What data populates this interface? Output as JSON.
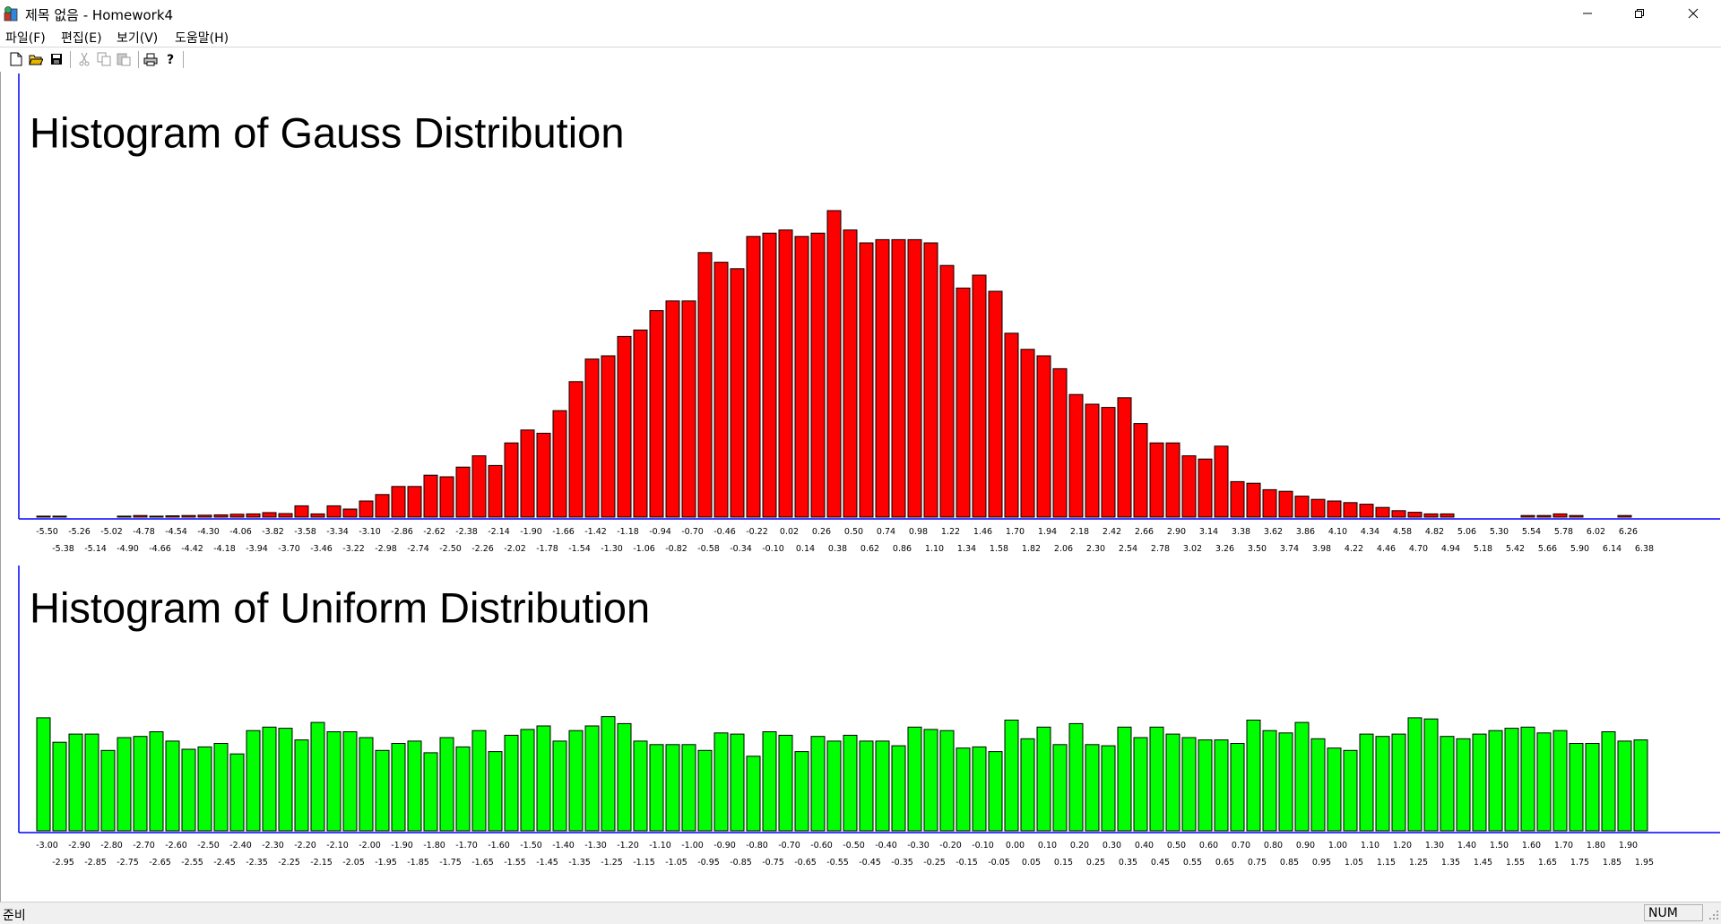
{
  "window": {
    "title": "제목 없음 - Homework4",
    "icons": {
      "app": "app-icon",
      "minimize": "minimize-icon",
      "restore": "restore-icon",
      "close": "close-icon"
    }
  },
  "menu": {
    "items": [
      "파일(F)",
      "편집(E)",
      "보기(V)",
      "도움말(H)"
    ]
  },
  "toolbar": {
    "buttons": [
      "new-file-icon",
      "open-folder-icon",
      "save-icon",
      "cut-icon",
      "copy-icon",
      "paste-icon",
      "print-icon",
      "help-icon"
    ]
  },
  "status": {
    "ready": "준비",
    "num": "NUM"
  },
  "colors": {
    "gauss_bar": "#ff0000",
    "uniform_bar": "#00ff00",
    "axis": "#0000ff"
  },
  "chart_data": [
    {
      "type": "bar",
      "title": "Histogram of Gauss Distribution",
      "bar_color": "#ff0000",
      "x": [
        -5.5,
        -5.38,
        -5.26,
        -5.14,
        -5.02,
        -4.9,
        -4.78,
        -4.66,
        -4.54,
        -4.42,
        -4.3,
        -4.18,
        -4.06,
        -3.94,
        -3.82,
        -3.7,
        -3.58,
        -3.46,
        -3.34,
        -3.22,
        -3.1,
        -2.98,
        -2.86,
        -2.74,
        -2.62,
        -2.5,
        -2.38,
        -2.26,
        -2.14,
        -2.02,
        -1.9,
        -1.78,
        -1.66,
        -1.54,
        -1.42,
        -1.3,
        -1.18,
        -1.06,
        -0.94,
        -0.82,
        -0.7,
        -0.58,
        -0.46,
        -0.34,
        -0.22,
        -0.1,
        0.02,
        0.14,
        0.26,
        0.38,
        0.5,
        0.62,
        0.74,
        0.86,
        0.98,
        1.1,
        1.22,
        1.34,
        1.46,
        1.58,
        1.7,
        1.82,
        1.94,
        2.06,
        2.18,
        2.3,
        2.42,
        2.54,
        2.66,
        2.78,
        2.9,
        3.02,
        3.14,
        3.26,
        3.38,
        3.5,
        3.62,
        3.74,
        3.86,
        3.98,
        4.1,
        4.22,
        4.34,
        4.46,
        4.58,
        4.7,
        4.82,
        4.94,
        5.06,
        5.18,
        5.3,
        5.42,
        5.54,
        5.66,
        5.78,
        5.9,
        6.02,
        6.14,
        6.26,
        6.38
      ],
      "tick_labels_row1": [
        "-5.50",
        "-5.26",
        "-5.02",
        "-4.78",
        "-4.54",
        "-4.30",
        "-4.06",
        "-3.82",
        "-3.58",
        "-3.34",
        "-3.10",
        "-2.86",
        "-2.62",
        "-2.38",
        "-2.14",
        "-1.90",
        "-1.66",
        "-1.42",
        "-1.18",
        "-0.94",
        "-0.70",
        "-0.46",
        "-0.22",
        "0.02",
        "0.26",
        "0.50",
        "0.74",
        "0.98",
        "1.22",
        "1.46",
        "1.70",
        "1.94",
        "2.18",
        "2.42",
        "2.66",
        "2.90",
        "3.14",
        "3.38",
        "3.62",
        "3.86",
        "4.10",
        "4.34",
        "4.58",
        "4.82",
        "5.06",
        "5.30",
        "5.54",
        "5.78",
        "6.02",
        "6.26"
      ],
      "tick_labels_row2": [
        "-5.38",
        "-5.14",
        "-4.90",
        "-4.66",
        "-4.42",
        "-4.18",
        "-3.94",
        "-3.70",
        "-3.46",
        "-3.22",
        "-2.98",
        "-2.74",
        "-2.50",
        "-2.26",
        "-2.02",
        "-1.78",
        "-1.54",
        "-1.30",
        "-1.06",
        "-0.82",
        "-0.58",
        "-0.34",
        "-0.10",
        "0.14",
        "0.38",
        "0.62",
        "0.86",
        "1.10",
        "1.34",
        "1.58",
        "1.82",
        "2.06",
        "2.30",
        "2.54",
        "2.78",
        "3.02",
        "3.26",
        "3.50",
        "3.74",
        "3.98",
        "4.22",
        "4.46",
        "4.70",
        "4.94",
        "5.18",
        "5.42",
        "5.66",
        "5.90",
        "6.14",
        "6.38"
      ],
      "values": [
        0.3,
        0.3,
        0,
        0,
        0,
        0.3,
        0.5,
        0.3,
        0.4,
        0.5,
        0.6,
        0.7,
        0.9,
        1.0,
        1.4,
        1.1,
        3.5,
        1.0,
        3.5,
        2.5,
        5,
        7,
        9.5,
        9.5,
        13,
        12.5,
        15.5,
        19,
        16,
        23,
        27,
        26,
        33,
        42,
        49,
        50,
        56,
        58,
        64,
        67,
        67,
        82,
        79,
        77,
        87,
        88,
        89,
        87,
        88,
        95,
        89,
        85,
        86,
        86,
        86,
        85,
        78,
        71,
        75,
        70,
        57,
        52,
        50,
        46,
        38,
        35,
        34,
        37,
        29,
        23,
        23,
        19,
        18,
        22,
        11,
        10.5,
        8.5,
        8,
        6.5,
        5.5,
        5,
        4.5,
        4,
        3,
        2,
        1.5,
        1,
        1,
        0,
        0,
        0,
        0,
        0.5,
        0.5,
        1,
        0.5,
        0,
        0,
        0.5,
        0
      ],
      "ylim": [
        0,
        100
      ],
      "legend": "none"
    },
    {
      "type": "bar",
      "title": "Histogram of Uniform Distribution",
      "bar_color": "#00ff00",
      "x": [
        -3.0,
        -2.95,
        -2.9,
        -2.85,
        -2.8,
        -2.75,
        -2.7,
        -2.65,
        -2.6,
        -2.55,
        -2.5,
        -2.45,
        -2.4,
        -2.35,
        -2.3,
        -2.25,
        -2.2,
        -2.15,
        -2.1,
        -2.05,
        -2.0,
        -1.95,
        -1.9,
        -1.85,
        -1.8,
        -1.75,
        -1.7,
        -1.65,
        -1.6,
        -1.55,
        -1.5,
        -1.45,
        -1.4,
        -1.35,
        -1.3,
        -1.25,
        -1.2,
        -1.15,
        -1.1,
        -1.05,
        -1.0,
        -0.95,
        -0.9,
        -0.85,
        -0.8,
        -0.75,
        -0.7,
        -0.65,
        -0.6,
        -0.55,
        -0.5,
        -0.45,
        -0.4,
        -0.35,
        -0.3,
        -0.25,
        -0.2,
        -0.15,
        -0.1,
        -0.05,
        0.0,
        0.05,
        0.1,
        0.15,
        0.2,
        0.25,
        0.3,
        0.35,
        0.4,
        0.45,
        0.5,
        0.55,
        0.6,
        0.65,
        0.7,
        0.75,
        0.8,
        0.85,
        0.9,
        0.95,
        1.0,
        1.05,
        1.1,
        1.15,
        1.2,
        1.25,
        1.3,
        1.35,
        1.4,
        1.45,
        1.5,
        1.55,
        1.6,
        1.65,
        1.7,
        1.75,
        1.8,
        1.85,
        1.9,
        1.95
      ],
      "tick_labels_row1": [
        "-3.00",
        "-2.90",
        "-2.80",
        "-2.70",
        "-2.60",
        "-2.50",
        "-2.40",
        "-2.30",
        "-2.20",
        "-2.10",
        "-2.00",
        "-1.90",
        "-1.80",
        "-1.70",
        "-1.60",
        "-1.50",
        "-1.40",
        "-1.30",
        "-1.20",
        "-1.10",
        "-1.00",
        "-0.90",
        "-0.80",
        "-0.70",
        "-0.60",
        "-0.50",
        "-0.40",
        "-0.30",
        "-0.20",
        "-0.10",
        "0.00",
        "0.10",
        "0.20",
        "0.30",
        "0.40",
        "0.50",
        "0.60",
        "0.70",
        "0.80",
        "0.90",
        "1.00",
        "1.10",
        "1.20",
        "1.30",
        "1.40",
        "1.50",
        "1.60",
        "1.70",
        "1.80",
        "1.90"
      ],
      "tick_labels_row2": [
        "-2.95",
        "-2.85",
        "-2.75",
        "-2.65",
        "-2.55",
        "-2.45",
        "-2.35",
        "-2.25",
        "-2.15",
        "-2.05",
        "-1.95",
        "-1.85",
        "-1.75",
        "-1.65",
        "-1.55",
        "-1.45",
        "-1.35",
        "-1.25",
        "-1.15",
        "-1.05",
        "-0.95",
        "-0.85",
        "-0.75",
        "-0.65",
        "-0.55",
        "-0.45",
        "-0.35",
        "-0.25",
        "-0.15",
        "-0.05",
        "0.05",
        "0.15",
        "0.25",
        "0.35",
        "0.45",
        "0.55",
        "0.65",
        "0.75",
        "0.85",
        "0.95",
        "1.05",
        "1.15",
        "1.25",
        "1.35",
        "1.45",
        "1.55",
        "1.65",
        "1.75",
        "1.85",
        "1.95"
      ],
      "values": [
        97,
        76,
        83,
        83,
        69,
        80,
        81,
        85,
        77,
        70,
        72,
        75,
        66,
        86,
        89,
        88,
        78,
        93,
        85,
        85,
        80,
        69,
        75,
        77,
        67,
        80,
        72,
        86,
        68,
        82,
        87,
        90,
        77,
        86,
        90,
        98,
        92,
        77,
        74,
        74,
        74,
        69,
        84,
        83,
        64,
        85,
        82,
        68,
        81,
        77,
        82,
        77,
        77,
        73,
        89,
        87,
        86,
        71,
        72,
        68,
        95,
        79,
        89,
        74,
        92,
        74,
        73,
        89,
        80,
        89,
        83,
        80,
        78,
        78,
        75,
        95,
        86,
        84,
        93,
        79,
        71,
        69,
        83,
        81,
        83,
        97,
        96,
        81,
        79,
        83,
        86,
        88,
        89,
        84,
        86,
        75,
        75,
        85,
        77,
        78
      ],
      "ylim": [
        0,
        100
      ],
      "legend": "none"
    }
  ]
}
